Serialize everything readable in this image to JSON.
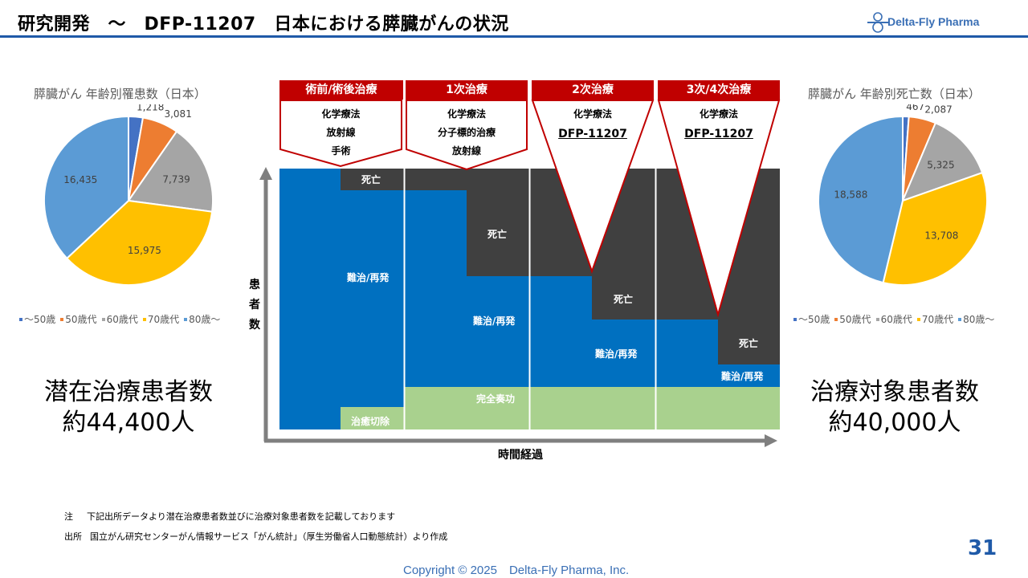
{
  "header": {
    "title": "研究開発　～　DFP-11207　日本における膵臓がんの状況",
    "logo_text": "Delta-Fly Pharma"
  },
  "left_pie": {
    "title": "膵臓がん 年齢別罹患数（日本）",
    "big_label_line1": "潜在治療患者数",
    "big_label_line2": "約44,400人"
  },
  "right_pie": {
    "title": "膵臓がん 年齢別死亡数（日本）",
    "big_label_line1": "治療対象患者数",
    "big_label_line2": "約40,000人"
  },
  "legend": [
    {
      "label": "～50歳",
      "color": "#4472c4"
    },
    {
      "label": "50歳代",
      "color": "#ed7d31"
    },
    {
      "label": "60歳代",
      "color": "#a5a5a5"
    },
    {
      "label": "70歳代",
      "color": "#ffc000"
    },
    {
      "label": "80歳～",
      "color": "#5b9bd5"
    }
  ],
  "chart_data": [
    {
      "type": "pie",
      "title": "膵臓がん 年齢別罹患数（日本）",
      "categories": [
        "～50歳",
        "50歳代",
        "60歳代",
        "70歳代",
        "80歳～"
      ],
      "values": [
        1218,
        3081,
        7739,
        15975,
        16435
      ],
      "value_labels": [
        "1,218",
        "3,081",
        "7,739",
        "15,975",
        "16,435"
      ],
      "colors": [
        "#4472c4",
        "#ed7d31",
        "#a5a5a5",
        "#ffc000",
        "#5b9bd5"
      ],
      "legend": "bottom"
    },
    {
      "type": "pie",
      "title": "膵臓がん 年齢別死亡数（日本）",
      "categories": [
        "～50歳",
        "50歳代",
        "60歳代",
        "70歳代",
        "80歳～"
      ],
      "values": [
        467,
        2087,
        5325,
        13708,
        18588
      ],
      "value_labels": [
        "467",
        "2,087",
        "5,325",
        "13,708",
        "18,588"
      ],
      "colors": [
        "#4472c4",
        "#ed7d31",
        "#a5a5a5",
        "#ffc000",
        "#5b9bd5"
      ],
      "legend": "bottom"
    }
  ],
  "diagram": {
    "stages": [
      {
        "header": "術前/術後治療",
        "items": [
          "化学療法",
          "放射線",
          "手術"
        ]
      },
      {
        "header": "1次治療",
        "items": [
          "化学療法",
          "分子標的治療",
          "放射線"
        ]
      },
      {
        "header": "2次治療",
        "items": [
          "化学療法",
          "DFP-11207"
        ]
      },
      {
        "header": "3次/4次治療",
        "items": [
          "化学療法",
          "DFP-11207"
        ]
      }
    ],
    "labels": {
      "death": "死亡",
      "refractory": "難治/再発",
      "complete_response": "完全奏功",
      "cure_resection": "治癒切除"
    },
    "x_axis": "時間経過",
    "y_axis": "患者数",
    "colors": {
      "death": "#404040",
      "refractory": "#0070c0",
      "good": "#a9d18e",
      "header": "#c00000"
    }
  },
  "notes": {
    "note_label": "注",
    "note_text": "下記出所データより潜在治療患者数並びに治療対象患者数を記載しております",
    "source_label": "出所",
    "source_text": "国立がん研究センターがん情報サービス「がん統計」（厚生労働省人口動態統計）より作成"
  },
  "footer": {
    "page": "31",
    "copyright": "Copyright © 2025　Delta-Fly Pharma, Inc."
  }
}
